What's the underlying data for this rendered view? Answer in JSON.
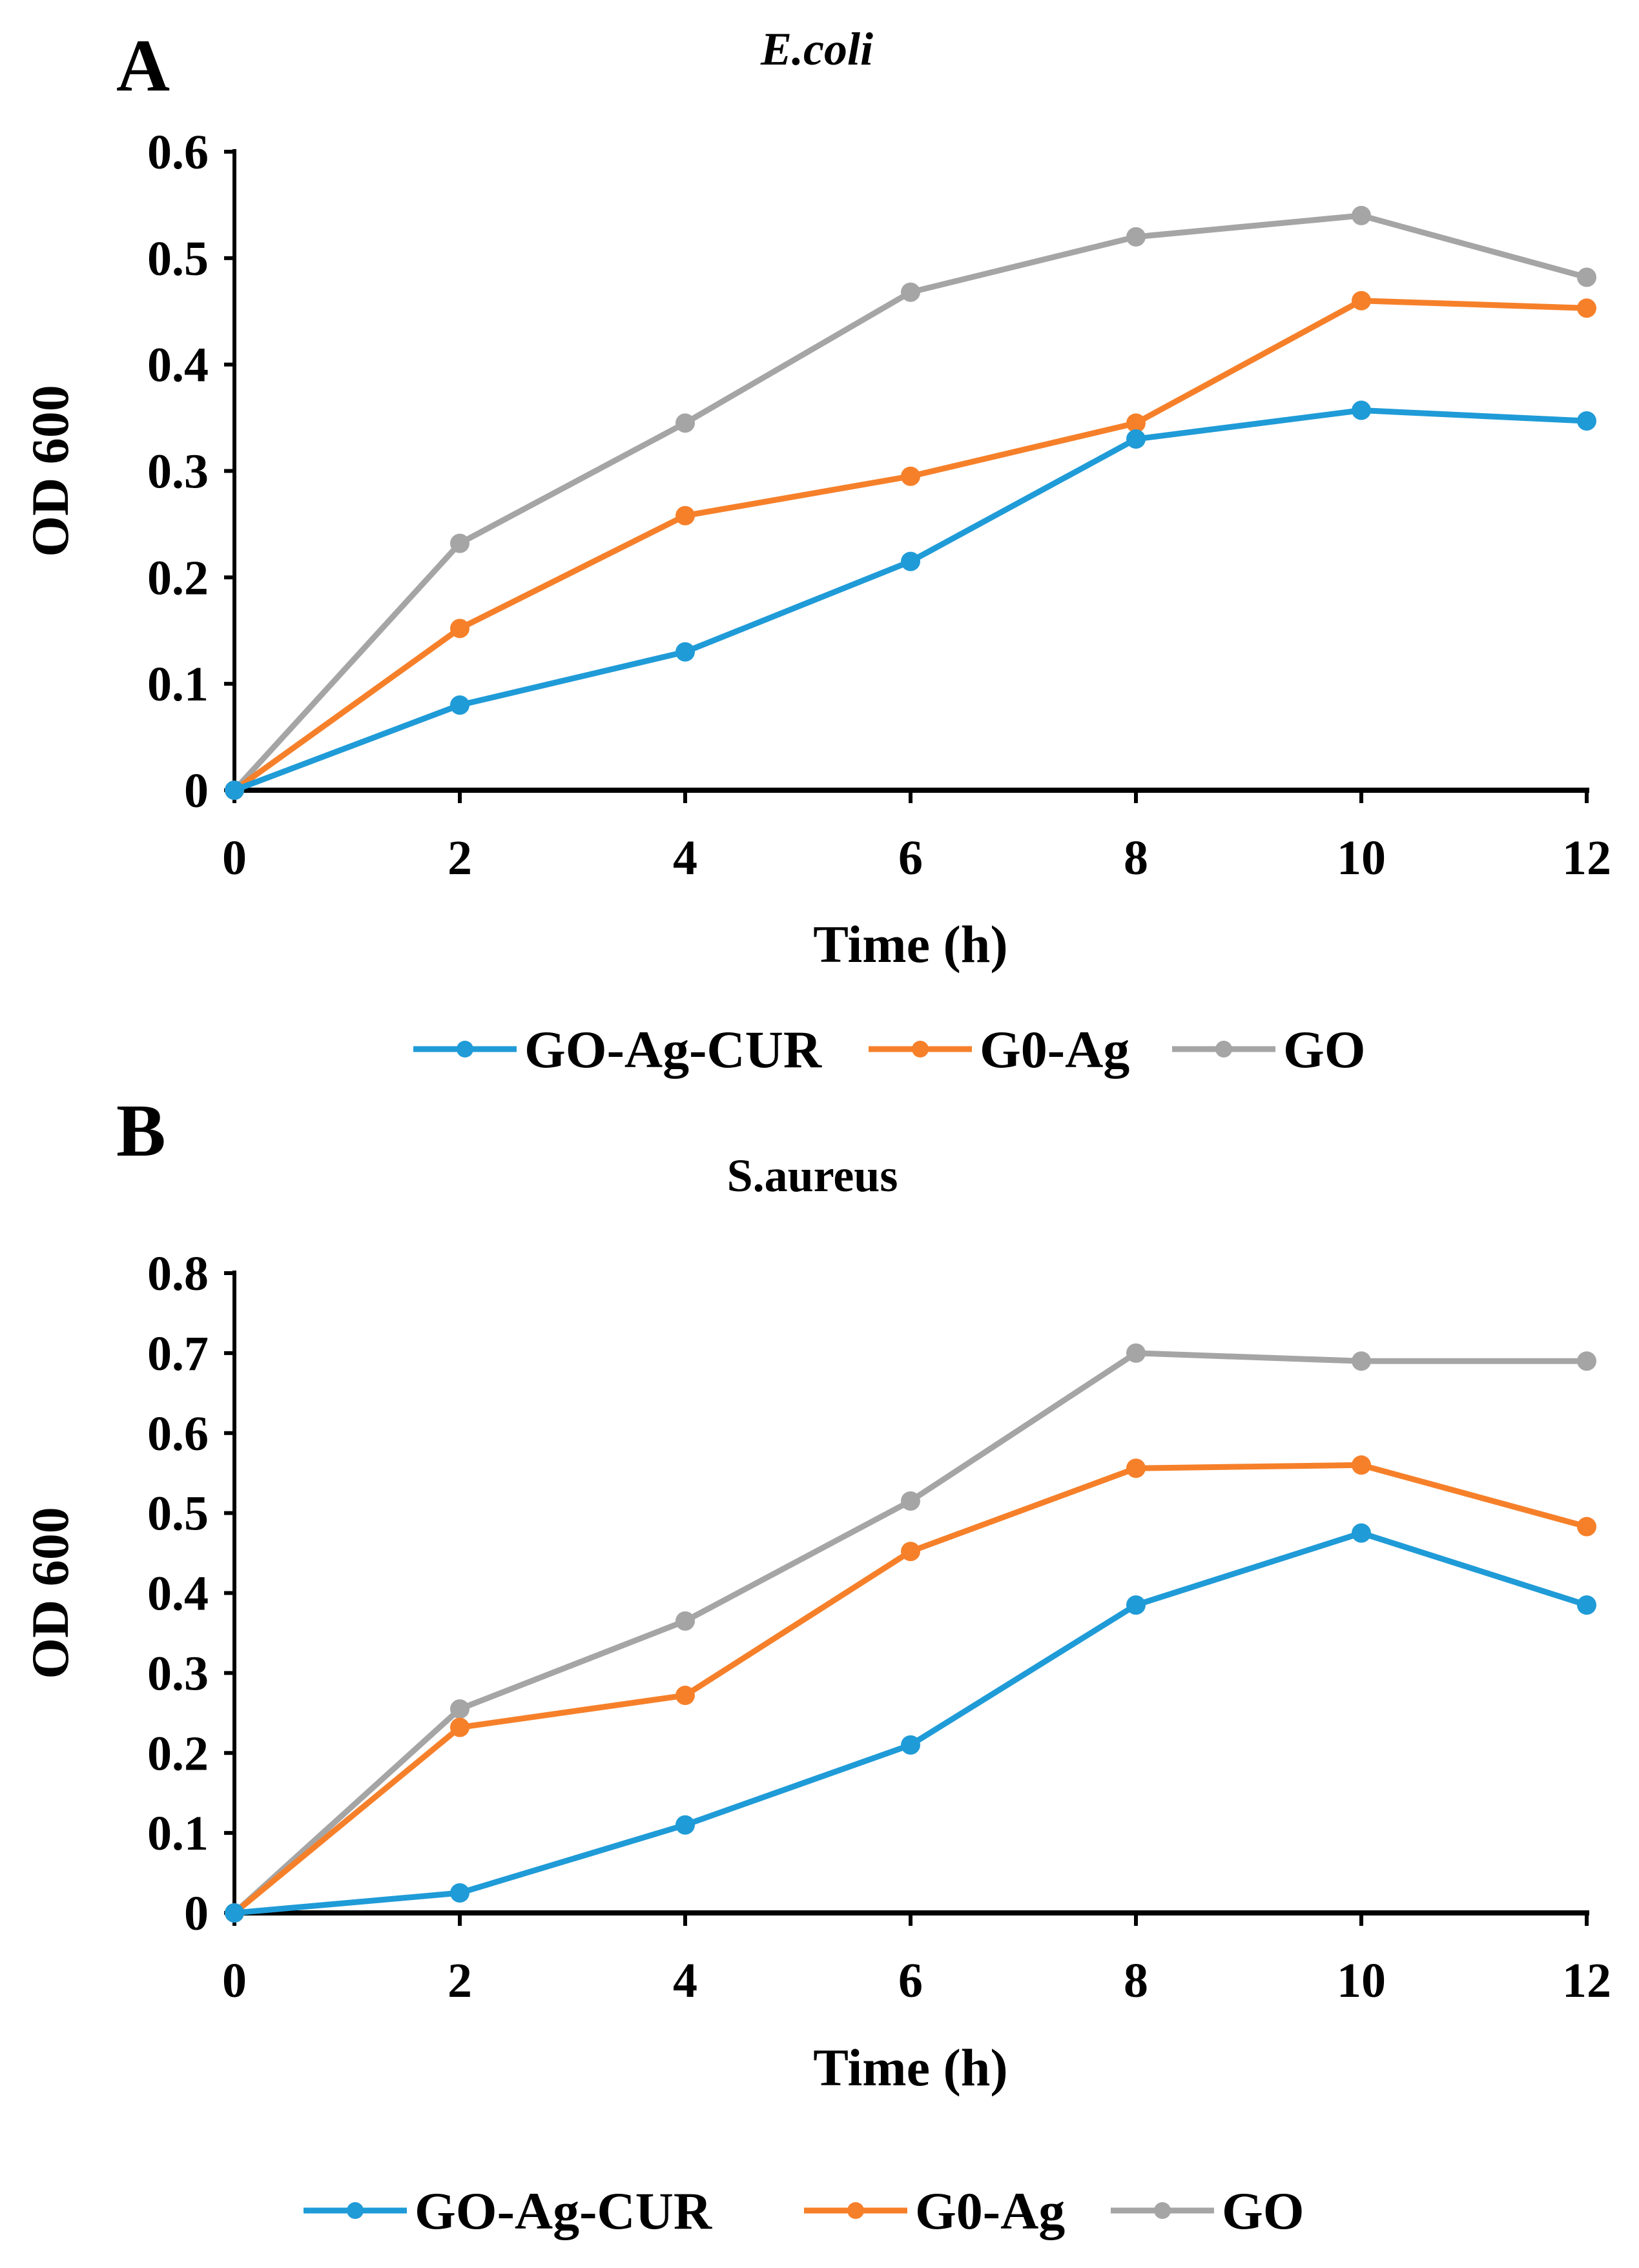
{
  "colors": {
    "GO-Ag-CUR": "#1f9bd7",
    "G0-Ag": "#f6802a",
    "GO": "#a5a5a5"
  },
  "chart_data": [
    {
      "type": "line",
      "panel_label": "A",
      "title": "E.coli",
      "xlabel": "Time (h)",
      "ylabel": "OD 600",
      "x": [
        0,
        2,
        4,
        6,
        8,
        10,
        12
      ],
      "xticks": [
        "0",
        "2",
        "4",
        "6",
        "8",
        "10",
        "12"
      ],
      "yticks": [
        "0",
        "0.1",
        "0.2",
        "0.3",
        "0.4",
        "0.5",
        "0.6"
      ],
      "xlim": [
        0,
        12
      ],
      "ylim": [
        0,
        0.6
      ],
      "grid": false,
      "legend_position": "bottom",
      "series": [
        {
          "name": "GO-Ag-CUR",
          "values": [
            0,
            0.08,
            0.13,
            0.215,
            0.33,
            0.357,
            0.347
          ]
        },
        {
          "name": "G0-Ag",
          "values": [
            0,
            0.152,
            0.258,
            0.295,
            0.345,
            0.46,
            0.453
          ]
        },
        {
          "name": "GO",
          "values": [
            0,
            0.232,
            0.345,
            0.468,
            0.52,
            0.54,
            0.482
          ]
        }
      ]
    },
    {
      "type": "line",
      "panel_label": "B",
      "title": "S.aureus",
      "xlabel": "Time (h)",
      "ylabel": "OD 600",
      "x": [
        0,
        2,
        4,
        6,
        8,
        10,
        12
      ],
      "xticks": [
        "0",
        "2",
        "4",
        "6",
        "8",
        "10",
        "12"
      ],
      "yticks": [
        "0",
        "0.1",
        "0.2",
        "0.3",
        "0.4",
        "0.5",
        "0.6",
        "0.7",
        "0.8"
      ],
      "xlim": [
        0,
        12
      ],
      "ylim": [
        0,
        0.8
      ],
      "grid": false,
      "legend_position": "bottom",
      "series": [
        {
          "name": "GO-Ag-CUR",
          "values": [
            0,
            0.025,
            0.11,
            0.21,
            0.385,
            0.475,
            0.385
          ]
        },
        {
          "name": "G0-Ag",
          "values": [
            0,
            0.232,
            0.272,
            0.452,
            0.556,
            0.56,
            0.483
          ]
        },
        {
          "name": "GO",
          "values": [
            0,
            0.255,
            0.365,
            0.515,
            0.7,
            0.69,
            0.69
          ]
        }
      ]
    }
  ]
}
